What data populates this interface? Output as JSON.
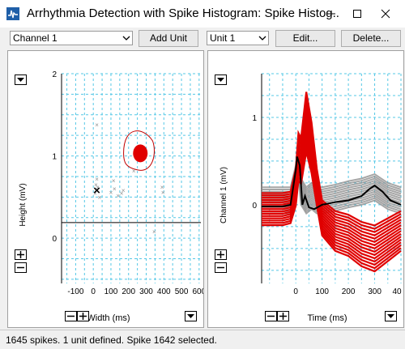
{
  "window": {
    "title": "Arrhythmia Detection with Spike Histogram: Spike Histog...",
    "minimize_icon": "minimize-icon",
    "maximize_icon": "maximize-icon",
    "close_icon": "close-icon"
  },
  "toolbar": {
    "channel_select": "Channel 1",
    "add_unit_label": "Add Unit",
    "unit_select": "Unit 1",
    "edit_label": "Edit...",
    "delete_label": "Delete..."
  },
  "scatter_panel": {
    "x_label": "Width (ms)",
    "y_label": "Height (mV)",
    "x_ticks": [
      "-100",
      "0",
      "100",
      "200",
      "300",
      "400",
      "500",
      "600"
    ],
    "y_ticks": [
      "2",
      "1",
      "0"
    ]
  },
  "overlay_panel": {
    "x_label": "Time (ms)",
    "y_label": "Channel 1 (mV)",
    "x_ticks": [
      "0",
      "100",
      "200",
      "300",
      "40"
    ],
    "y_ticks": [
      "1",
      "0"
    ]
  },
  "status": {
    "text": "1645 spikes. 1 unit defined. Spike 1642 selected."
  },
  "colors": {
    "grid": "#55c8e6",
    "unit": "#e00000",
    "unclassified": "#909090",
    "selected": "#000000"
  },
  "chart_data": [
    {
      "type": "scatter",
      "xlabel": "Width (ms)",
      "ylabel": "Height (mV)",
      "xlim": [
        -180,
        610
      ],
      "ylim": [
        -0.55,
        2.0
      ],
      "threshold_y": 0.19,
      "series": [
        {
          "name": "Unit 1",
          "color": "#e00000",
          "points": [
            [
              250,
              1.02
            ],
            [
              260,
              1.06
            ],
            [
              270,
              1.08
            ],
            [
              280,
              1.05
            ],
            [
              255,
              0.98
            ],
            [
              275,
              0.96
            ],
            [
              265,
              1.1
            ],
            [
              285,
              0.99
            ],
            [
              260,
              0.95
            ],
            [
              270,
              1.01
            ],
            [
              280,
              1.1
            ],
            [
              250,
              1.08
            ]
          ]
        },
        {
          "color": "#909090",
          "points": [
            [
              20,
              1.38
            ],
            [
              20,
              0.72
            ],
            [
              15,
              0.65
            ],
            [
              25,
              0.62
            ],
            [
              10,
              0.55
            ],
            [
              100,
              0.56
            ],
            [
              120,
              0.6
            ],
            [
              115,
              0.7
            ],
            [
              140,
              0.52
            ],
            [
              160,
              0.55
            ],
            [
              170,
              0.58
            ],
            [
              230,
              0.82
            ],
            [
              390,
              0.62
            ],
            [
              395,
              0.56
            ],
            [
              345,
              0.08
            ],
            [
              35,
              0.5
            ]
          ]
        }
      ],
      "selected_point": [
        20,
        0.58
      ]
    },
    {
      "type": "line",
      "xlabel": "Time (ms)",
      "ylabel": "Channel 1 (mV)",
      "xlim": [
        -130,
        400
      ],
      "ylim": [
        -0.9,
        1.5
      ],
      "series": [
        {
          "name": "Unit 1",
          "color": "#e00000",
          "x": [
            -130,
            -50,
            -20,
            0,
            10,
            20,
            40,
            60,
            80,
            100,
            150,
            200,
            250,
            300,
            350,
            400
          ],
          "y": [
            -0.05,
            -0.05,
            -0.03,
            0.2,
            0.55,
            0.5,
            0.95,
            0.65,
            0.2,
            -0.15,
            -0.3,
            -0.35,
            -0.45,
            -0.5,
            -0.4,
            -0.3
          ]
        },
        {
          "color": "#909090",
          "x": [
            -130,
            -50,
            -20,
            0,
            10,
            20,
            40,
            60,
            80,
            100,
            150,
            200,
            250,
            300,
            350,
            400
          ],
          "y": [
            0.05,
            0.05,
            0.05,
            0.3,
            0.5,
            0.15,
            0.05,
            0.1,
            0.05,
            0.05,
            0.08,
            0.12,
            0.15,
            0.2,
            0.1,
            0.05
          ]
        },
        {
          "color": "#000000",
          "x": [
            -130,
            -50,
            -20,
            0,
            5,
            15,
            25,
            35,
            50,
            70,
            100,
            150,
            200,
            250,
            280,
            300,
            330,
            360,
            400
          ],
          "y": [
            -0.02,
            -0.02,
            0.0,
            0.4,
            0.55,
            0.45,
            0.0,
            0.1,
            -0.03,
            -0.05,
            0.0,
            0.03,
            0.05,
            0.1,
            0.18,
            0.22,
            0.15,
            0.05,
            0.0
          ]
        }
      ]
    }
  ]
}
